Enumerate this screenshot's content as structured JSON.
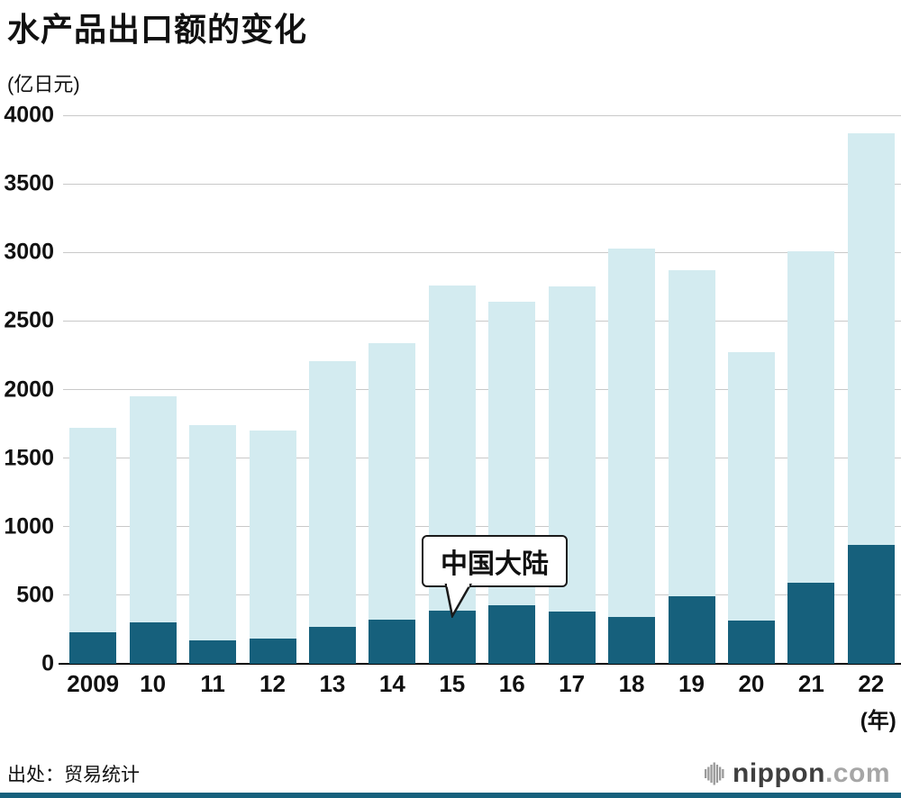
{
  "chart_data": {
    "type": "bar",
    "title": "水产品出口额的变化",
    "unit_label": "(亿日元)",
    "categories": [
      "2009",
      "10",
      "11",
      "12",
      "13",
      "14",
      "15",
      "16",
      "17",
      "18",
      "19",
      "20",
      "21",
      "22"
    ],
    "x_suffix": "(年)",
    "ylim": [
      0,
      4000
    ],
    "ytick_step": 500,
    "grid": true,
    "legend_position": "none",
    "series": [
      {
        "id": "total-exports",
        "color": "#d3ebf0",
        "values": [
          1720,
          1950,
          1740,
          1700,
          2210,
          2340,
          2760,
          2640,
          2750,
          3030,
          2870,
          2270,
          3010,
          3870
        ]
      },
      {
        "id": "china-mainland",
        "color": "#16607c",
        "values": [
          230,
          300,
          170,
          185,
          270,
          320,
          390,
          430,
          380,
          340,
          490,
          315,
          590,
          870
        ]
      }
    ],
    "annotation": {
      "label": "中国大陆",
      "target_category": "15"
    },
    "source": "出处：贸易统计"
  },
  "logo": {
    "brand": "nippon",
    "tld": ".com"
  },
  "colors": {
    "accent_dark": "#16607c",
    "accent_light": "#d3ebf0",
    "grid": "#c9c9c9",
    "baseline": "#000000"
  }
}
